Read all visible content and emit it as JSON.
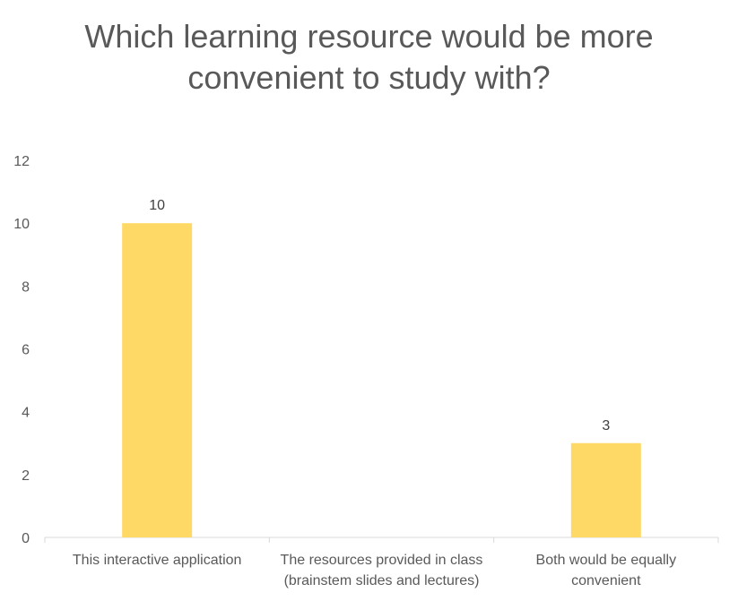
{
  "chart_data": {
    "type": "bar",
    "title_lines": [
      "Which learning resource would be more",
      "convenient to study with?"
    ],
    "categories": [
      [
        "This interactive application"
      ],
      [
        "The resources provided in class",
        "(brainstem slides and lectures)"
      ],
      [
        "Both would be equally",
        "convenient"
      ]
    ],
    "values": [
      10,
      0,
      3
    ],
    "data_labels": [
      "10",
      "",
      "3"
    ],
    "ylim": [
      0,
      12
    ],
    "yticks": [
      0,
      2,
      4,
      6,
      8,
      10,
      12
    ],
    "grid": false,
    "legend": "none",
    "bar_color": "#FFD966",
    "axis_color": "#D9D9D9",
    "text_color": "#595959",
    "label_color": "#404040"
  }
}
